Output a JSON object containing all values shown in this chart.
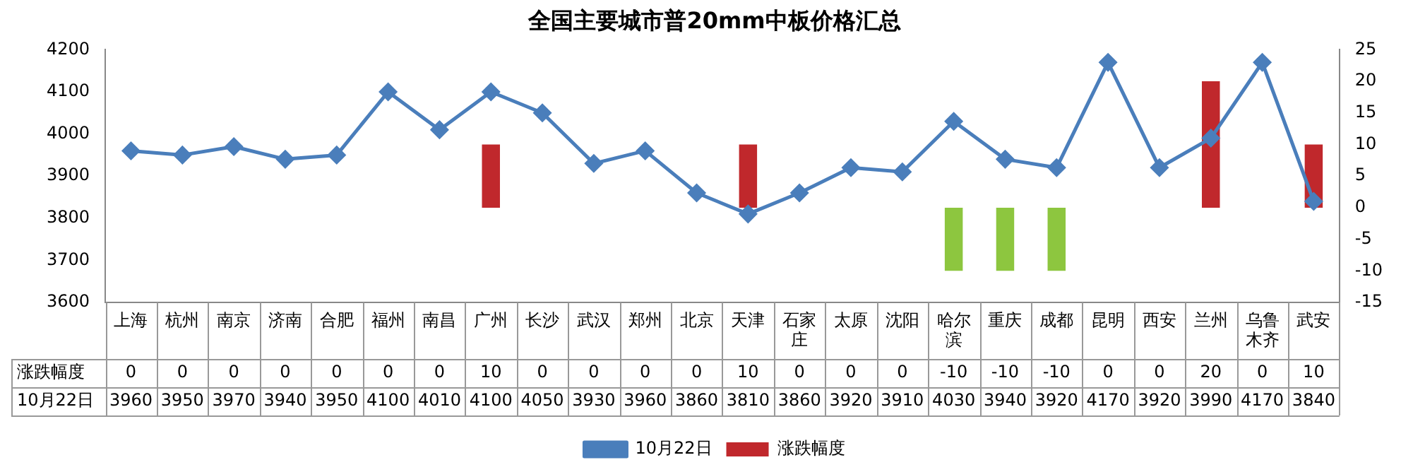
{
  "chart_data": {
    "type": "bar",
    "title": "全国主要城市普20mm中板价格汇总",
    "categories": [
      "上海",
      "杭州",
      "南京",
      "济南",
      "合肥",
      "福州",
      "南昌",
      "广州",
      "长沙",
      "武汉",
      "郑州",
      "北京",
      "天津",
      "石家庄",
      "太原",
      "沈阳",
      "哈尔滨",
      "重庆",
      "成都",
      "昆明",
      "西安",
      "兰州",
      "乌鲁木齐",
      "武安"
    ],
    "series": [
      {
        "name": "涨跌幅度",
        "axis": "y2",
        "color": "#c0282c",
        "colors": [
          "#c0282c",
          "#c0282c",
          "#c0282c",
          "#c0282c",
          "#c0282c",
          "#c0282c",
          "#c0282c",
          "#c0282c",
          "#c0282c",
          "#c0282c",
          "#c0282c",
          "#c0282c",
          "#c0282c",
          "#c0282c",
          "#c0282c",
          "#c0282c",
          "#8dc63f",
          "#8dc63f",
          "#8dc63f",
          "#c0282c",
          "#c0282c",
          "#c0282c",
          "#c0282c",
          "#c0282c"
        ],
        "values": [
          0,
          0,
          0,
          0,
          0,
          0,
          0,
          10,
          0,
          0,
          0,
          0,
          10,
          0,
          0,
          0,
          -10,
          -10,
          -10,
          0,
          0,
          20,
          0,
          10
        ]
      },
      {
        "name": "10月22日",
        "type": "line",
        "axis": "y",
        "color": "#4a7ebb",
        "values": [
          3960,
          3950,
          3970,
          3940,
          3950,
          4100,
          4010,
          4100,
          4050,
          3930,
          3960,
          3860,
          3810,
          3860,
          3920,
          3910,
          4030,
          3940,
          3920,
          4170,
          3920,
          3990,
          4170,
          3840
        ]
      }
    ],
    "ylim": [
      3600,
      4200
    ],
    "yticks": [
      3600,
      3700,
      3800,
      3900,
      4000,
      4100,
      4200
    ],
    "y2lim": [
      -15,
      25
    ],
    "y2ticks": [
      -15,
      -10,
      -5,
      0,
      5,
      10,
      15,
      20,
      25
    ],
    "grid": false,
    "legend": "bottom",
    "marker": "diamond",
    "line_style": "solid",
    "data_labels": true
  }
}
